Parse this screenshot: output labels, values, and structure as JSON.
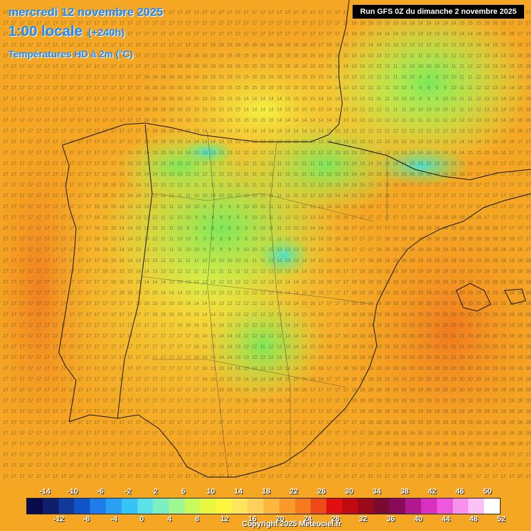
{
  "title": {
    "date": "mercredi 12 novembre 2025",
    "time": "1:00 locale",
    "lead": "(+240h)",
    "variable": "Températures HD à 2m (°C)"
  },
  "run_info": "Run GFS 0Z du dimanche 2 novembre 2025",
  "copyright": "Copyright 2025 Meteociel.fr",
  "legend": {
    "top_labels": [
      "-14",
      "-10",
      "-6",
      "-2",
      "2",
      "6",
      "10",
      "14",
      "18",
      "22",
      "26",
      "30",
      "34",
      "38",
      "42",
      "46",
      "50"
    ],
    "bottom_labels": [
      "-12",
      "-8",
      "-4",
      "0",
      "4",
      "8",
      "12",
      "16",
      "20",
      "24",
      "28",
      "32",
      "36",
      "40",
      "44",
      "48",
      "52"
    ],
    "colors": [
      "#0a0a4a",
      "#0f1f6e",
      "#123a9a",
      "#0f55c8",
      "#1f7ce8",
      "#2aa0f5",
      "#35c4f5",
      "#5ee0e8",
      "#7ef0c0",
      "#9ef890",
      "#c8fa5a",
      "#e8f83c",
      "#fff640",
      "#fde65a",
      "#fcd05a",
      "#fbb83c",
      "#f99a2a",
      "#f57a1e",
      "#ee4a18",
      "#e01010",
      "#c00a10",
      "#9a0a1a",
      "#7a0a30",
      "#8a0a5a",
      "#b01890",
      "#d830c0",
      "#ee58dc",
      "#f890ee",
      "#fcc0f8",
      "#ffffff"
    ]
  },
  "map_data": {
    "region": "Péninsule Ibérique",
    "value_min": 5,
    "value_max": 21
  }
}
